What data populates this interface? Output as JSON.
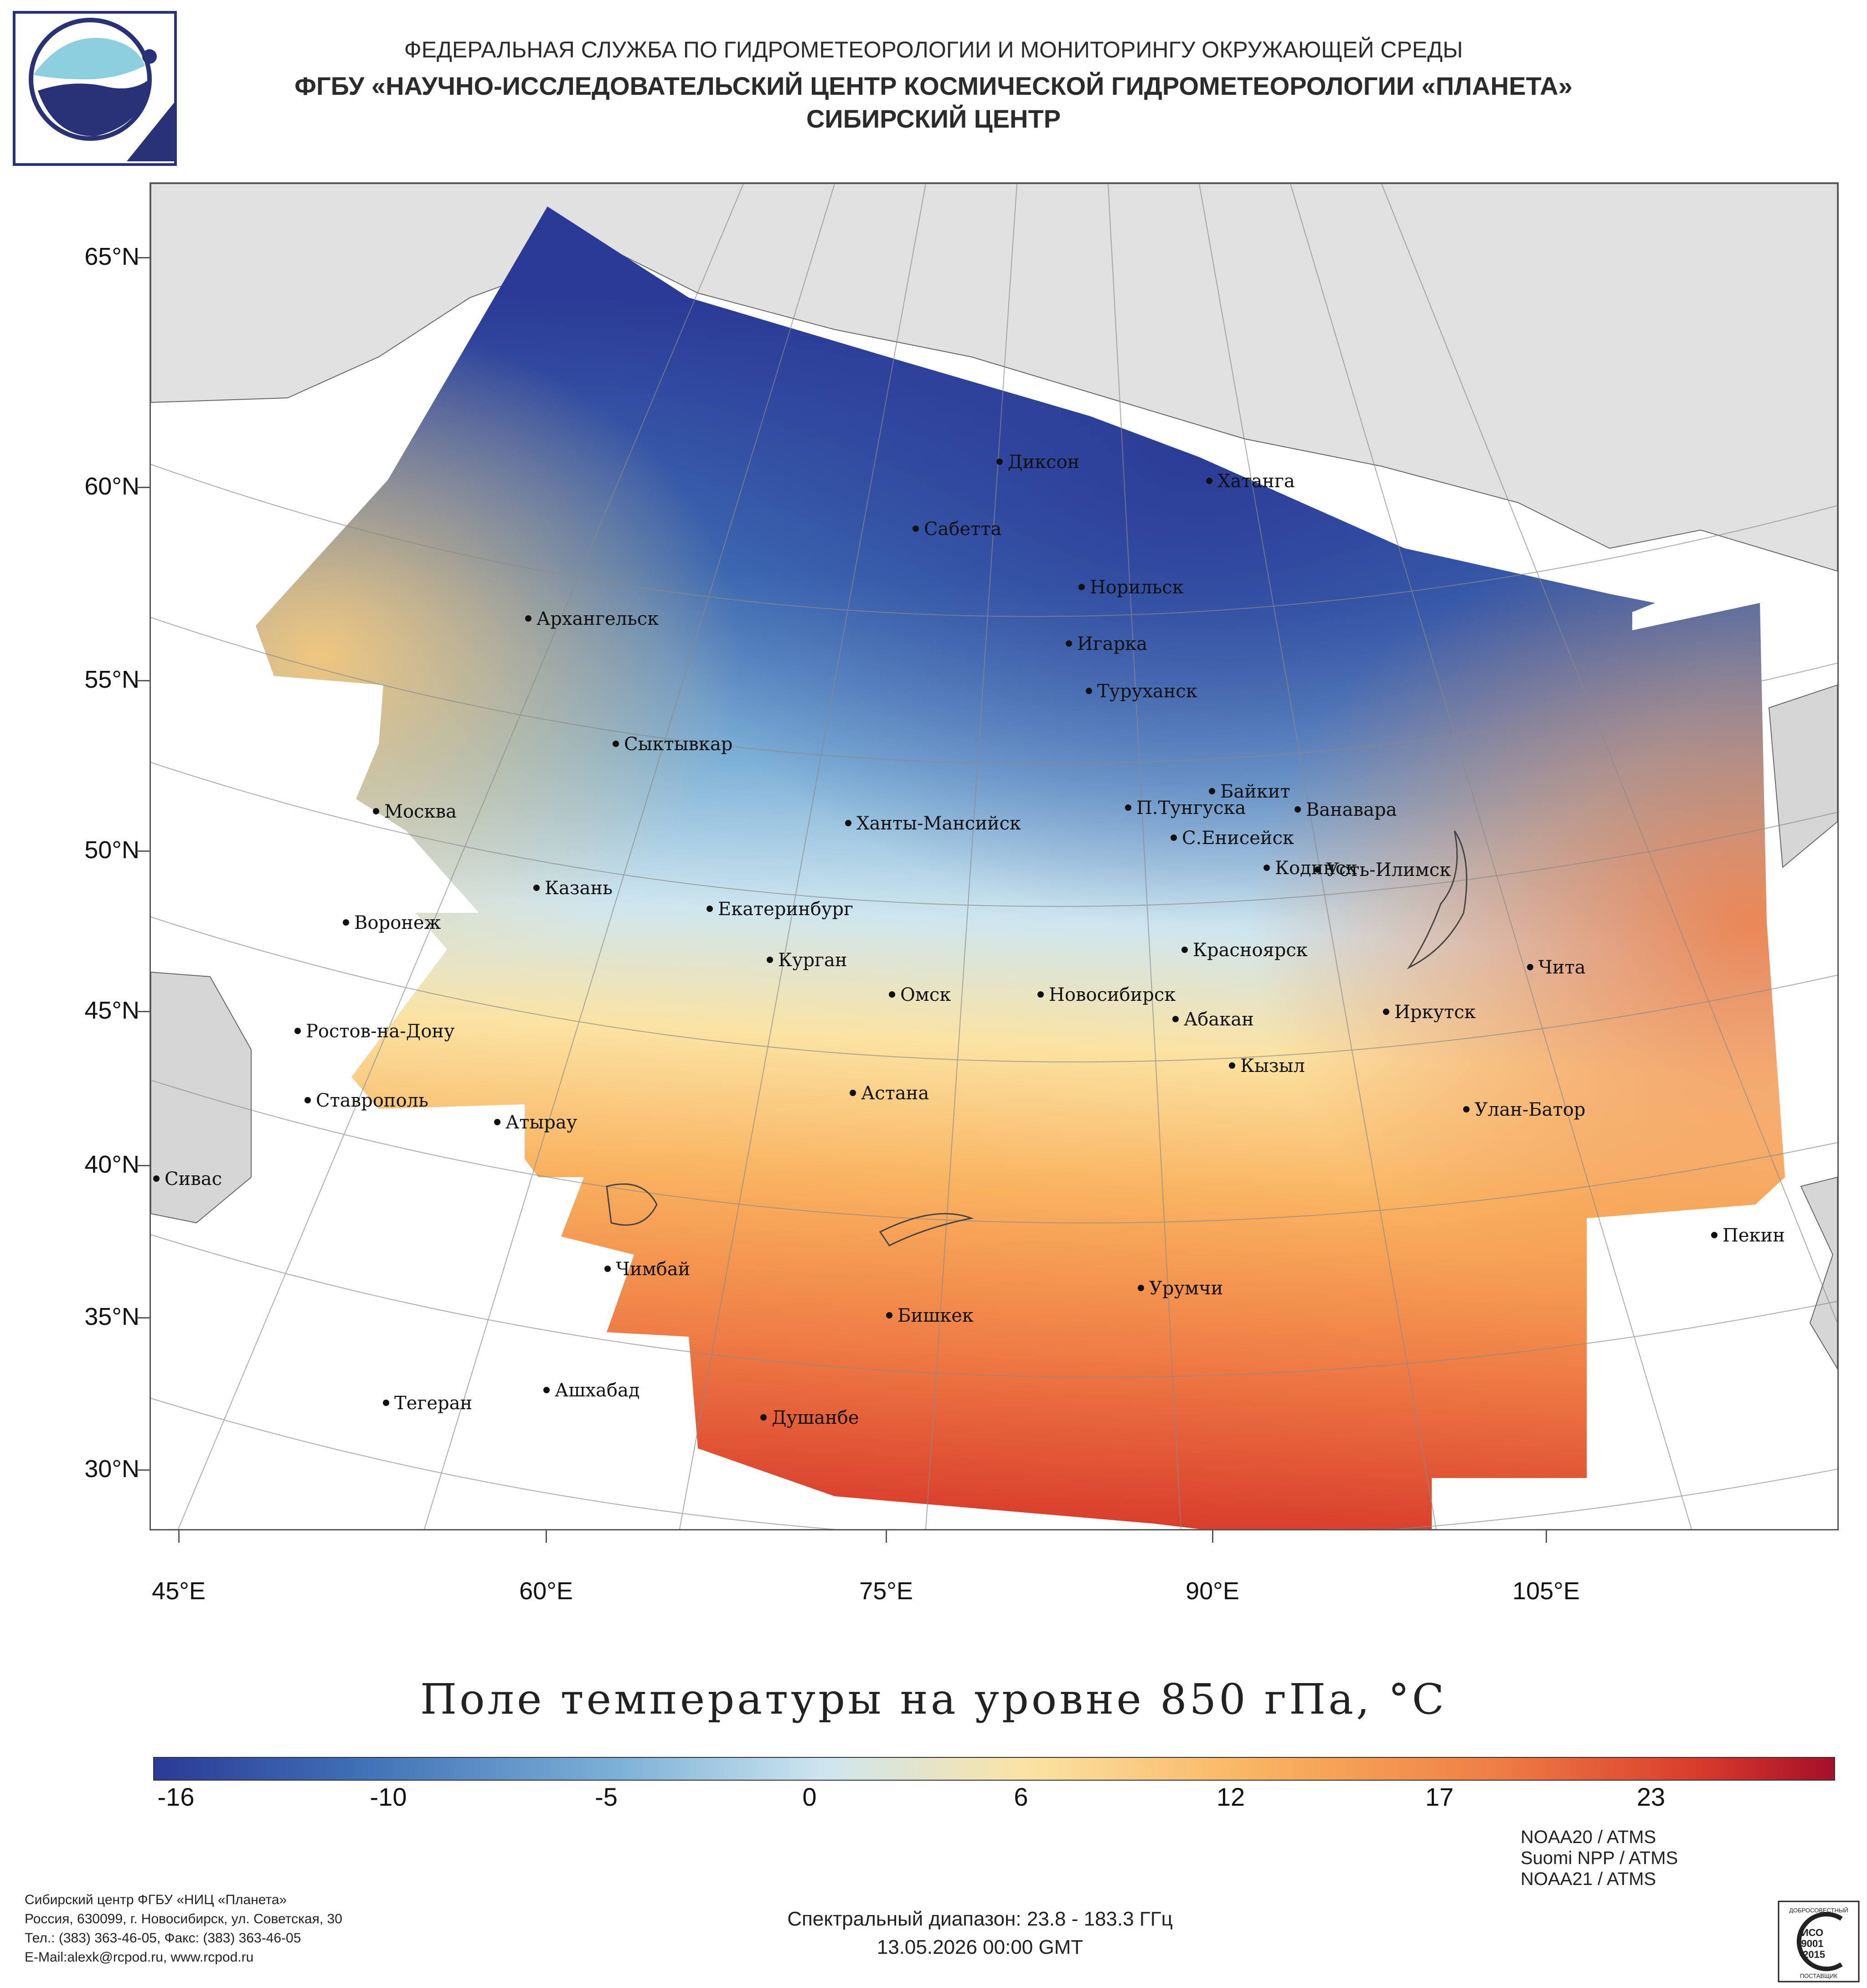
{
  "header": {
    "line1": "ФЕДЕРАЛЬНАЯ СЛУЖБА ПО ГИДРОМЕТЕОРОЛОГИИ И МОНИТОРИНГУ ОКРУЖАЮЩЕЙ СРЕДЫ",
    "line2": "ФГБУ «НАУЧНО-ИССЛЕДОВАТЕЛЬСКИЙ ЦЕНТР КОСМИЧЕСКОЙ ГИДРОМЕТЕОРОЛОГИИ «ПЛАНЕТА»",
    "line3": "СИБИРСКИЙ ЦЕНТР"
  },
  "map": {
    "lat_labels": [
      "65°N",
      "60°N",
      "55°N",
      "50°N",
      "45°N",
      "40°N",
      "35°N",
      "30°N"
    ],
    "lon_labels": [
      "45°E",
      "60°E",
      "75°E",
      "90°E",
      "105°E"
    ],
    "cities": [
      "Диксон",
      "Хатанга",
      "Сабетта",
      "Норильск",
      "Игарка",
      "Туруханск",
      "Архангельск",
      "Сыктывкар",
      "Москва",
      "Байкит",
      "П.Тунгуска",
      "Ванавара",
      "Ханты-Мансийск",
      "С.Енисейск",
      "Кодинск",
      "Усть-Илимск",
      "Казань",
      "Екатеринбург",
      "Воронеж",
      "Курган",
      "Красноярск",
      "Чита",
      "Омск",
      "Новосибирск",
      "Иркутск",
      "Абакан",
      "Ростов-на-Дону",
      "Кызыл",
      "Астана",
      "Ставрополь",
      "Улан-Батор",
      "Атырау",
      "Сивас",
      "Пекин",
      "Чимбай",
      "Урумчи",
      "Бишкек",
      "Ашхабад",
      "Тегеран",
      "Душанбе"
    ]
  },
  "legend": {
    "title": "Поле температуры на уровне 850 гПа, °C",
    "ticks": [
      "-16",
      "-10",
      "-5",
      "0",
      "6",
      "12",
      "17",
      "23"
    ],
    "colors": [
      "#2b3a96",
      "#3f6fb5",
      "#7fb2d8",
      "#cfe6ef",
      "#fbe3a3",
      "#f9b25f",
      "#ef7d45",
      "#d83a2b",
      "#a50f2a"
    ]
  },
  "footer": {
    "org_line1": "Сибирский центр ФГБУ «НИЦ «Планета»",
    "org_line2": "Россия, 630099, г. Новосибирск, ул. Советская, 30",
    "org_line3": "Тел.: (383) 363-46-05, Факс: (383) 363-46-05",
    "org_line4": "E-Mail:alexk@rcpod.ru, www.rcpod.ru",
    "spectral": "Спектральный диапазон: 23.8 - 183.3 ГГц",
    "datetime": "13.05.2026 00:00 GMT",
    "sensor1": "NOAA20 / ATMS",
    "sensor2": "Suomi NPP / ATMS",
    "sensor3": "NOAA21 / ATMS",
    "badge_top": "ДОБРОСОВЕСТНЫЙ",
    "badge_iso": "ИСО",
    "badge_num": "9001",
    "badge_year": "-2015",
    "badge_bottom": "ПОСТАВЩИК"
  }
}
